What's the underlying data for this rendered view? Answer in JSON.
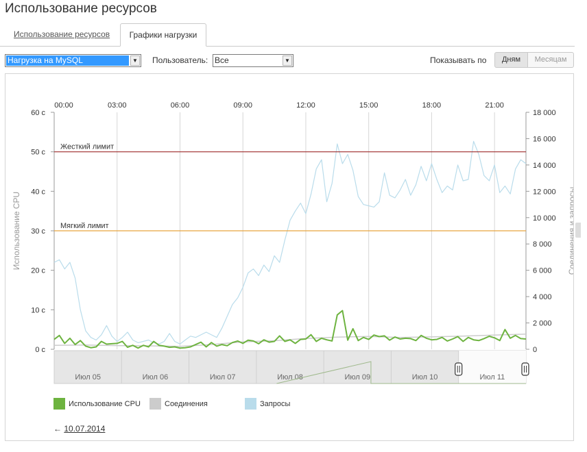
{
  "page": {
    "title": "Использование ресурсов"
  },
  "tabs": [
    {
      "label": "Использование ресурсов",
      "active": false
    },
    {
      "label": "Графики нагрузки",
      "active": true
    }
  ],
  "filters": {
    "load_select": {
      "value": "Нагрузка на MySQL"
    },
    "user_label": "Пользователь:",
    "user_select": {
      "value": "Все"
    },
    "show_by_label": "Показывать по",
    "period_buttons": [
      {
        "label": "Дням",
        "active": true
      },
      {
        "label": "Месяцам",
        "active": false
      }
    ]
  },
  "colors": {
    "cpu": "#6db33f",
    "connections": "#cccccc",
    "requests": "#b9dceb",
    "hard_limit": "#9e2a2a",
    "soft_limit": "#e8a33d"
  },
  "chart_data": {
    "type": "line",
    "x_ticks": [
      "00:00",
      "03:00",
      "06:00",
      "09:00",
      "12:00",
      "15:00",
      "18:00",
      "21:00"
    ],
    "x_range": [
      0,
      22.5
    ],
    "y_left": {
      "label": "Использование CPU",
      "range": [
        0,
        60
      ],
      "ticks": [
        "0 с",
        "10 с",
        "20 с",
        "30 с",
        "40 с",
        "50 с",
        "60 с"
      ]
    },
    "y_right": {
      "label": "Соединения и запросы",
      "range": [
        0,
        18000
      ],
      "ticks": [
        "0",
        "2 000",
        "4 000",
        "6 000",
        "8 000",
        "10 000",
        "12 000",
        "14 000",
        "16 000",
        "18 000"
      ]
    },
    "limits": [
      {
        "label": "Жесткий лимит",
        "value": 50
      },
      {
        "label": "Мягкий лимит",
        "value": 30
      }
    ],
    "series": [
      {
        "name": "Запросы",
        "axis": "right",
        "x": [
          0,
          0.25,
          0.5,
          0.75,
          1,
          1.25,
          1.5,
          1.75,
          2,
          2.25,
          2.5,
          2.75,
          3,
          3.25,
          3.5,
          3.75,
          4,
          4.25,
          4.5,
          4.75,
          5,
          5.25,
          5.5,
          5.75,
          6,
          6.25,
          6.5,
          6.75,
          7,
          7.25,
          7.5,
          7.75,
          8,
          8.25,
          8.5,
          8.75,
          9,
          9.25,
          9.5,
          9.75,
          10,
          10.25,
          10.5,
          10.75,
          11,
          11.25,
          11.5,
          11.75,
          12,
          12.25,
          12.5,
          12.75,
          13,
          13.25,
          13.5,
          13.75,
          14,
          14.25,
          14.5,
          14.75,
          15,
          15.25,
          15.5,
          15.75,
          16,
          16.25,
          16.5,
          16.75,
          17,
          17.25,
          17.5,
          17.75,
          18,
          18.25,
          18.5,
          18.75,
          19,
          19.25,
          19.5,
          19.75,
          20,
          20.25,
          20.5,
          20.75,
          21,
          21.25,
          21.5,
          21.75,
          22,
          22.25,
          22.5
        ],
        "values": [
          6600,
          6800,
          6100,
          6600,
          5400,
          3000,
          1400,
          900,
          700,
          1100,
          1800,
          1000,
          600,
          900,
          1300,
          700,
          500,
          600,
          700,
          500,
          400,
          600,
          1200,
          600,
          400,
          700,
          1000,
          900,
          1100,
          1300,
          1100,
          900,
          1600,
          2500,
          3400,
          3900,
          4700,
          5800,
          6100,
          5600,
          6400,
          5900,
          7100,
          6600,
          8300,
          9800,
          10500,
          11100,
          10300,
          11800,
          13700,
          14400,
          11200,
          12600,
          15600,
          14100,
          14800,
          13600,
          11600,
          11000,
          10900,
          10800,
          11200,
          13400,
          11700,
          11500,
          12100,
          12900,
          11700,
          12500,
          13900,
          12800,
          14100,
          12900,
          11900,
          12400,
          12100,
          14000,
          12800,
          12900,
          15800,
          14800,
          13200,
          12800,
          14000,
          11900,
          12400,
          11800,
          13700,
          14400,
          14100
        ]
      },
      {
        "name": "Соединения",
        "axis": "right",
        "x": [
          0,
          1.5,
          3,
          4.5,
          6,
          7.5,
          9,
          10.5,
          12,
          13.5,
          15,
          16.5,
          18,
          19.5,
          21,
          22.5
        ],
        "values": [
          300,
          320,
          280,
          260,
          220,
          360,
          560,
          650,
          820,
          920,
          980,
          900,
          940,
          1000,
          1080,
          1150
        ]
      },
      {
        "name": "Использование CPU",
        "axis": "left",
        "x": [
          0,
          0.25,
          0.5,
          0.75,
          1,
          1.25,
          1.5,
          1.75,
          2,
          2.25,
          2.5,
          2.75,
          3,
          3.25,
          3.5,
          3.75,
          4,
          4.25,
          4.5,
          4.75,
          5,
          5.25,
          5.5,
          5.75,
          6,
          6.25,
          6.5,
          6.75,
          7,
          7.25,
          7.5,
          7.75,
          8,
          8.25,
          8.5,
          8.75,
          9,
          9.25,
          9.5,
          9.75,
          10,
          10.25,
          10.5,
          10.75,
          11,
          11.25,
          11.5,
          11.75,
          12,
          12.25,
          12.5,
          12.75,
          13,
          13.25,
          13.5,
          13.75,
          14,
          14.25,
          14.5,
          14.75,
          15,
          15.25,
          15.5,
          15.75,
          16,
          16.25,
          16.5,
          16.75,
          17,
          17.25,
          17.5,
          17.75,
          18,
          18.25,
          18.5,
          18.75,
          19,
          19.25,
          19.5,
          19.75,
          20,
          20.25,
          20.5,
          20.75,
          21,
          21.25,
          21.5,
          21.75,
          22,
          22.25,
          22.5
        ],
        "values": [
          2.5,
          3.5,
          1.5,
          2.8,
          1.2,
          2.2,
          0.8,
          0.4,
          0.6,
          2.0,
          1.3,
          1.4,
          1.5,
          2.0,
          0.5,
          1.0,
          0.3,
          1.0,
          0.6,
          2.0,
          1.0,
          0.8,
          0.5,
          0.6,
          0.3,
          0.4,
          0.6,
          1.2,
          1.8,
          0.6,
          1.7,
          0.8,
          1.2,
          0.9,
          1.7,
          2.1,
          1.5,
          2.3,
          2.1,
          1.4,
          2.4,
          1.8,
          2.0,
          3.4,
          2.0,
          2.4,
          1.5,
          2.5,
          2.6,
          3.7,
          2.0,
          2.8,
          2.4,
          2.1,
          8.7,
          9.8,
          2.3,
          5.2,
          2.2,
          3.0,
          2.5,
          3.6,
          3.2,
          3.4,
          2.3,
          3.1,
          2.6,
          2.8,
          2.7,
          2.2,
          3.5,
          2.8,
          2.4,
          2.5,
          3.0,
          2.1,
          2.6,
          3.2,
          2.0,
          3.0,
          2.4,
          2.2,
          2.7,
          3.3,
          2.9,
          2.2,
          5.0,
          2.8,
          3.5,
          2.7,
          2.6
        ]
      }
    ],
    "navigator": {
      "labels": [
        "Июл 05",
        "Июл 06",
        "Июл 07",
        "Июл 08",
        "Июл 09",
        "Июл 10",
        "Июл 11"
      ]
    }
  },
  "legend": [
    {
      "label": "Использование CPU",
      "color": "#6db33f"
    },
    {
      "label": "Соединения",
      "color": "#cccccc"
    },
    {
      "label": "Запросы",
      "color": "#b9dceb"
    }
  ],
  "back_link": {
    "arrow": "←",
    "date": "10.07.2014"
  }
}
